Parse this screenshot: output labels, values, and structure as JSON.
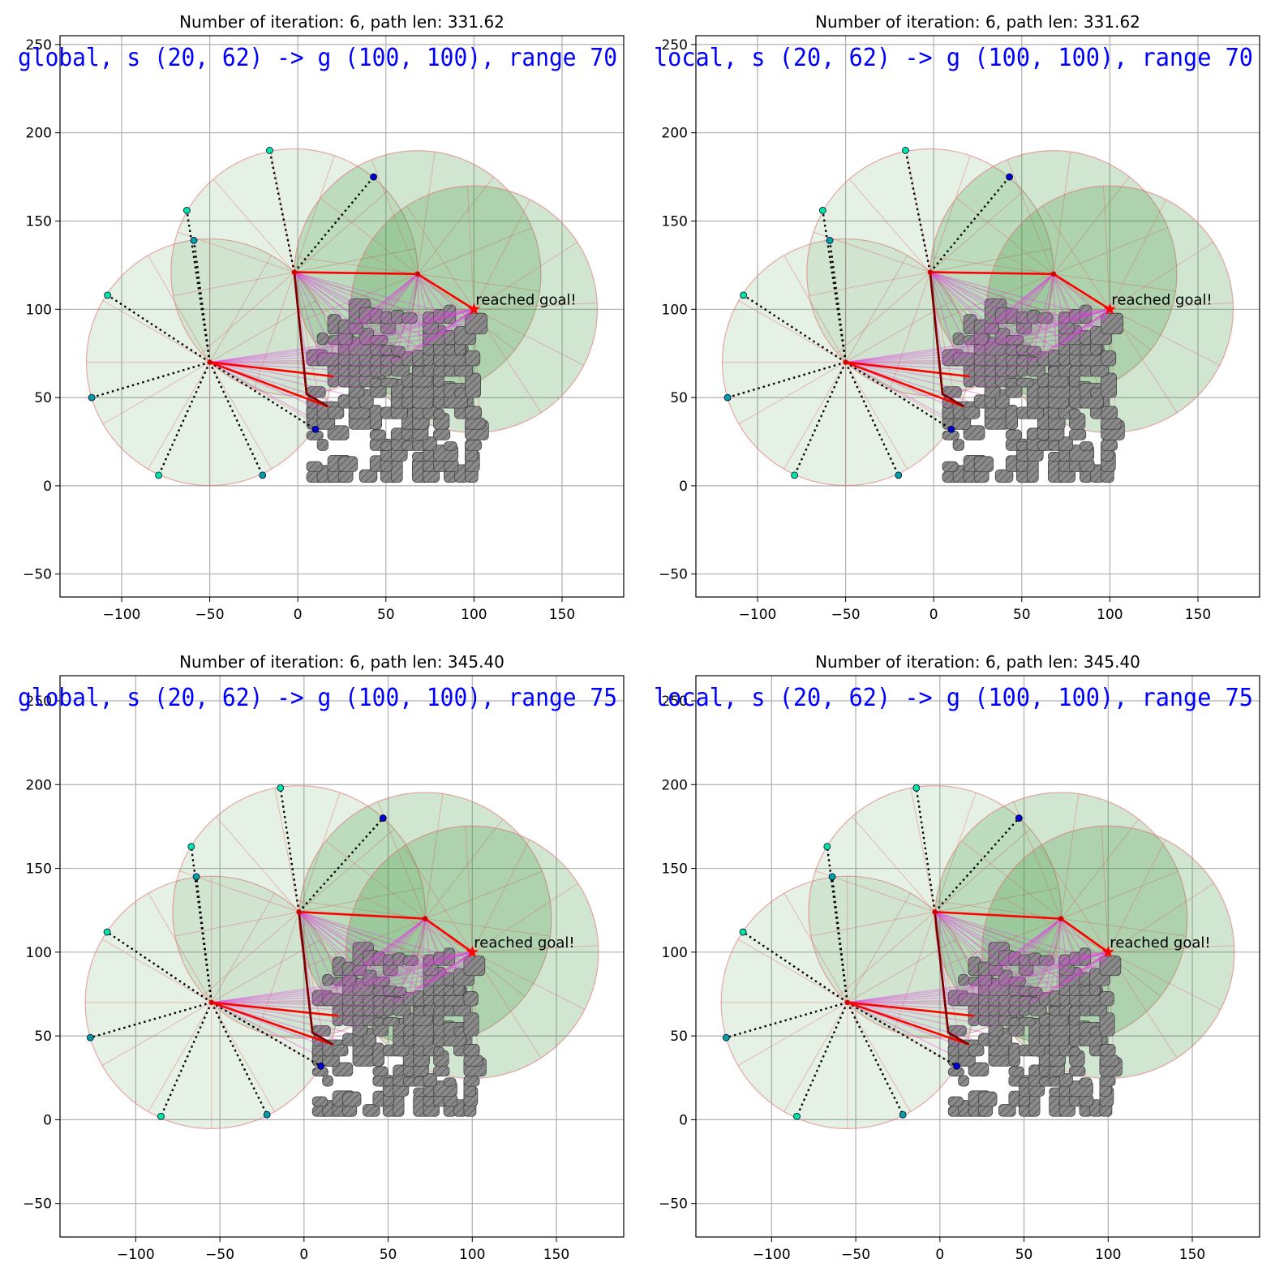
{
  "chart_data": [
    {
      "type": "scatter",
      "title": "Number of iteration: 6, path len: 331.62",
      "overlay_text": "global, s (20, 62) -> g (100, 100), range 70",
      "annotation": "reached goal!",
      "xlim": [
        -135,
        185
      ],
      "ylim": [
        -63,
        255
      ],
      "xticks": [
        -100,
        -50,
        0,
        50,
        100,
        150
      ],
      "yticks": [
        -50,
        0,
        50,
        100,
        150,
        200,
        250
      ],
      "grid": true,
      "range": 70,
      "nodes": [
        [
          -50,
          70
        ],
        [
          -2,
          121
        ],
        [
          68,
          120
        ],
        [
          100,
          100
        ]
      ],
      "goal": [
        100,
        100
      ],
      "start_points": [
        [
          -50,
          70
        ],
        [
          -2,
          121
        ]
      ],
      "path": [
        [
          -50,
          70
        ],
        [
          20,
          62
        ],
        [
          -50,
          70
        ],
        [
          17,
          45
        ],
        [
          5,
          52
        ],
        [
          -2,
          121
        ],
        [
          68,
          120
        ],
        [
          100,
          100
        ]
      ],
      "samples": [
        [
          -16,
          190
        ],
        [
          43,
          175
        ],
        [
          -63,
          156
        ],
        [
          -59,
          139
        ],
        [
          -108,
          108
        ],
        [
          -117,
          50
        ],
        [
          -79,
          6
        ],
        [
          -20,
          6
        ],
        [
          10,
          32
        ]
      ]
    },
    {
      "type": "scatter",
      "title": "Number of iteration: 6, path len: 331.62",
      "overlay_text": "local, s (20, 62) -> g (100, 100), range 70",
      "annotation": "reached goal!",
      "xlim": [
        -135,
        185
      ],
      "ylim": [
        -63,
        255
      ],
      "xticks": [
        -100,
        -50,
        0,
        50,
        100,
        150
      ],
      "yticks": [
        -50,
        0,
        50,
        100,
        150,
        200,
        250
      ],
      "grid": true,
      "range": 70,
      "nodes": [
        [
          -50,
          70
        ],
        [
          -2,
          121
        ],
        [
          68,
          120
        ],
        [
          100,
          100
        ]
      ],
      "goal": [
        100,
        100
      ],
      "start_points": [
        [
          -50,
          70
        ],
        [
          -2,
          121
        ]
      ],
      "path": [
        [
          -50,
          70
        ],
        [
          20,
          62
        ],
        [
          -50,
          70
        ],
        [
          17,
          45
        ],
        [
          5,
          52
        ],
        [
          -2,
          121
        ],
        [
          68,
          120
        ],
        [
          100,
          100
        ]
      ],
      "samples": [
        [
          -16,
          190
        ],
        [
          43,
          175
        ],
        [
          -63,
          156
        ],
        [
          -59,
          139
        ],
        [
          -108,
          108
        ],
        [
          -117,
          50
        ],
        [
          -79,
          6
        ],
        [
          -20,
          6
        ],
        [
          10,
          32
        ]
      ]
    },
    {
      "type": "scatter",
      "title": "Number of iteration: 6, path len: 345.40",
      "overlay_text": "global, s (20, 62) -> g (100, 100), range 75",
      "annotation": "reached goal!",
      "xlim": [
        -145,
        190
      ],
      "ylim": [
        -70,
        265
      ],
      "xticks": [
        -100,
        -50,
        0,
        50,
        100,
        150
      ],
      "yticks": [
        -50,
        0,
        50,
        100,
        150,
        200,
        250
      ],
      "grid": true,
      "range": 75,
      "nodes": [
        [
          -55,
          70
        ],
        [
          -3,
          124
        ],
        [
          72,
          120
        ],
        [
          100,
          100
        ]
      ],
      "goal": [
        100,
        100
      ],
      "start_points": [
        [
          -55,
          70
        ],
        [
          -3,
          124
        ]
      ],
      "path": [
        [
          -55,
          70
        ],
        [
          20,
          62
        ],
        [
          -55,
          70
        ],
        [
          17,
          45
        ],
        [
          5,
          52
        ],
        [
          -3,
          124
        ],
        [
          72,
          120
        ],
        [
          100,
          100
        ]
      ],
      "samples": [
        [
          -14,
          198
        ],
        [
          47,
          180
        ],
        [
          -67,
          163
        ],
        [
          -64,
          145
        ],
        [
          -117,
          112
        ],
        [
          -127,
          49
        ],
        [
          -85,
          2
        ],
        [
          -22,
          3
        ],
        [
          10,
          32
        ]
      ]
    },
    {
      "type": "scatter",
      "title": "Number of iteration: 6, path len: 345.40",
      "overlay_text": "local, s (20, 62) -> g (100, 100), range 75",
      "annotation": "reached goal!",
      "xlim": [
        -145,
        190
      ],
      "ylim": [
        -70,
        265
      ],
      "xticks": [
        -100,
        -50,
        0,
        50,
        100,
        150
      ],
      "yticks": [
        -50,
        0,
        50,
        100,
        150,
        200,
        250
      ],
      "grid": true,
      "range": 75,
      "nodes": [
        [
          -55,
          70
        ],
        [
          -3,
          124
        ],
        [
          72,
          120
        ],
        [
          100,
          100
        ]
      ],
      "goal": [
        100,
        100
      ],
      "start_points": [
        [
          -55,
          70
        ],
        [
          -3,
          124
        ]
      ],
      "path": [
        [
          -55,
          70
        ],
        [
          20,
          62
        ],
        [
          -55,
          70
        ],
        [
          17,
          45
        ],
        [
          5,
          52
        ],
        [
          -3,
          124
        ],
        [
          72,
          120
        ],
        [
          100,
          100
        ]
      ],
      "samples": [
        [
          -14,
          198
        ],
        [
          47,
          180
        ],
        [
          -67,
          163
        ],
        [
          -64,
          145
        ],
        [
          -117,
          112
        ],
        [
          -127,
          49
        ],
        [
          -85,
          2
        ],
        [
          -22,
          3
        ],
        [
          10,
          32
        ]
      ]
    }
  ],
  "colors": {
    "circle_fill": "#2e8b2e",
    "circle_edge": "#e07070",
    "path": "#ff0000",
    "bridge": "#7a0000",
    "fan": "#e040e0",
    "sample_fill_a": "#00e6a0",
    "sample_fill_b": "#0000cc",
    "obstacle": "#808080",
    "overlay": "#0000ff"
  }
}
